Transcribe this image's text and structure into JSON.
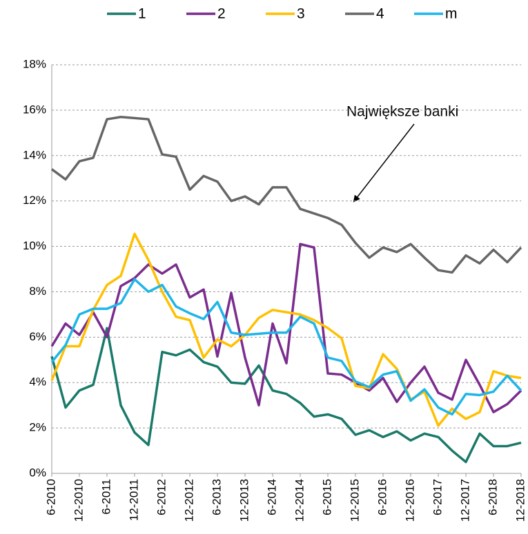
{
  "chart_data": {
    "type": "line",
    "categories": [
      "6-2010",
      null,
      "12-2010",
      null,
      "6-2011",
      null,
      "12-2011",
      null,
      "6-2012",
      null,
      "12-2012",
      null,
      "6-2013",
      null,
      "12-2013",
      null,
      "6-2014",
      null,
      "12-2014",
      null,
      "6-2015",
      null,
      "12-2015",
      null,
      "6-2016",
      null,
      "12-2016",
      null,
      "6-2017",
      null,
      "12-2017",
      null,
      "6-2018",
      null,
      "12-2018"
    ],
    "series": [
      {
        "name": "1",
        "color": "#1a7a6a",
        "values": [
          5.15,
          2.9,
          3.65,
          3.9,
          6.4,
          3.0,
          1.8,
          1.25,
          5.35,
          5.2,
          5.45,
          4.9,
          4.7,
          4.0,
          3.95,
          4.75,
          3.65,
          3.5,
          3.1,
          2.5,
          2.6,
          2.4,
          1.7,
          1.9,
          1.6,
          1.85,
          1.45,
          1.75,
          1.6,
          1.0,
          0.5,
          1.75,
          1.2,
          1.2,
          1.35
        ]
      },
      {
        "name": "2",
        "color": "#7b2d8e",
        "values": [
          5.6,
          6.6,
          6.1,
          7.1,
          6.0,
          8.25,
          8.6,
          9.2,
          8.8,
          9.2,
          7.75,
          8.1,
          5.15,
          7.95,
          5.1,
          3.0,
          6.6,
          4.85,
          10.1,
          9.95,
          4.4,
          4.35,
          4.0,
          3.65,
          4.2,
          3.15,
          4.0,
          4.7,
          3.55,
          3.25,
          5.0,
          3.9,
          2.7,
          3.05,
          3.65
        ]
      },
      {
        "name": "3",
        "color": "#ffc000",
        "values": [
          4.1,
          5.6,
          5.6,
          7.2,
          8.3,
          8.7,
          10.55,
          9.4,
          8.0,
          6.9,
          6.75,
          5.1,
          5.9,
          5.6,
          6.1,
          6.85,
          7.2,
          7.1,
          7.0,
          6.75,
          6.4,
          5.95,
          3.85,
          3.75,
          5.25,
          4.6,
          3.25,
          3.6,
          2.1,
          2.85,
          2.4,
          2.7,
          4.5,
          4.3,
          4.2
        ]
      },
      {
        "name": "4",
        "color": "#666666",
        "values": [
          13.4,
          12.95,
          13.75,
          13.9,
          15.6,
          15.7,
          15.65,
          15.6,
          14.05,
          13.95,
          12.5,
          13.1,
          12.85,
          12.0,
          12.2,
          11.85,
          12.6,
          12.6,
          11.65,
          11.45,
          11.25,
          10.95,
          10.15,
          9.5,
          9.95,
          9.75,
          10.1,
          9.5,
          8.95,
          8.85,
          9.6,
          9.25,
          9.85,
          9.3,
          9.95
        ]
      },
      {
        "name": "m",
        "color": "#1fb5e8",
        "values": [
          4.9,
          5.65,
          7.0,
          7.25,
          7.25,
          7.5,
          8.55,
          8.0,
          8.3,
          7.35,
          7.05,
          6.8,
          7.55,
          6.2,
          6.1,
          6.15,
          6.2,
          6.2,
          6.9,
          6.6,
          5.1,
          4.95,
          4.05,
          3.8,
          4.35,
          4.5,
          3.2,
          3.7,
          2.9,
          2.6,
          3.5,
          3.45,
          3.6,
          4.3,
          3.65
        ]
      }
    ],
    "ylim": [
      0,
      18
    ],
    "yticks": [
      {
        "value": 0,
        "label": "0%"
      },
      {
        "value": 2,
        "label": "2%"
      },
      {
        "value": 4,
        "label": "4%"
      },
      {
        "value": 6,
        "label": "6%"
      },
      {
        "value": 8,
        "label": "8%"
      },
      {
        "value": 10,
        "label": "10%"
      },
      {
        "value": 12,
        "label": "12%"
      },
      {
        "value": 14,
        "label": "14%"
      },
      {
        "value": 16,
        "label": "16%"
      },
      {
        "value": 18,
        "label": "18%"
      }
    ],
    "grid": true,
    "legend": "top",
    "annotations": [
      "Największe banki"
    ]
  }
}
